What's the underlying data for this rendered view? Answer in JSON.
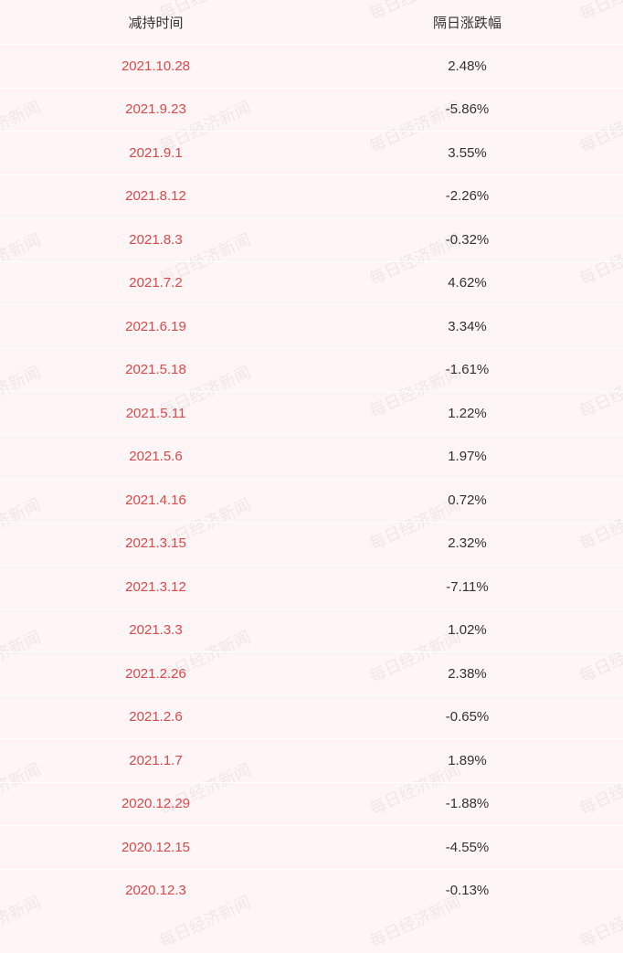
{
  "watermark_text": "每日经济新闻",
  "table": {
    "type": "table",
    "background_color": "#fdf5f6",
    "row_divider_color": "#ffffff",
    "header_text_color": "#333333",
    "date_text_color": "#d94a4a",
    "value_text_color": "#333333",
    "font_size": 15,
    "columns": [
      {
        "key": "date",
        "label": "减持时间"
      },
      {
        "key": "change",
        "label": "隔日涨跌幅"
      }
    ],
    "rows": [
      {
        "date": "2021.10.28",
        "change": "2.48%"
      },
      {
        "date": "2021.9.23",
        "change": "-5.86%"
      },
      {
        "date": "2021.9.1",
        "change": "3.55%"
      },
      {
        "date": "2021.8.12",
        "change": "-2.26%"
      },
      {
        "date": "2021.8.3",
        "change": "-0.32%"
      },
      {
        "date": "2021.7.2",
        "change": "4.62%"
      },
      {
        "date": "2021.6.19",
        "change": "3.34%"
      },
      {
        "date": "2021.5.18",
        "change": "-1.61%"
      },
      {
        "date": "2021.5.11",
        "change": "1.22%"
      },
      {
        "date": "2021.5.6",
        "change": "1.97%"
      },
      {
        "date": "2021.4.16",
        "change": "0.72%"
      },
      {
        "date": "2021.3.15",
        "change": "2.32%"
      },
      {
        "date": "2021.3.12",
        "change": "-7.11%"
      },
      {
        "date": "2021.3.3",
        "change": "1.02%"
      },
      {
        "date": "2021.2.26",
        "change": "2.38%"
      },
      {
        "date": "2021.2.6",
        "change": "-0.65%"
      },
      {
        "date": "2021.1.7",
        "change": "1.89%"
      },
      {
        "date": "2020.12.29",
        "change": "-1.88%"
      },
      {
        "date": "2020.12.15",
        "change": "-4.55%"
      },
      {
        "date": "2020.12.3",
        "change": "-0.13%"
      }
    ]
  },
  "watermark_style": {
    "color": "rgba(0,0,0,0.06)",
    "font_size": 18,
    "rotation_deg": -25
  }
}
